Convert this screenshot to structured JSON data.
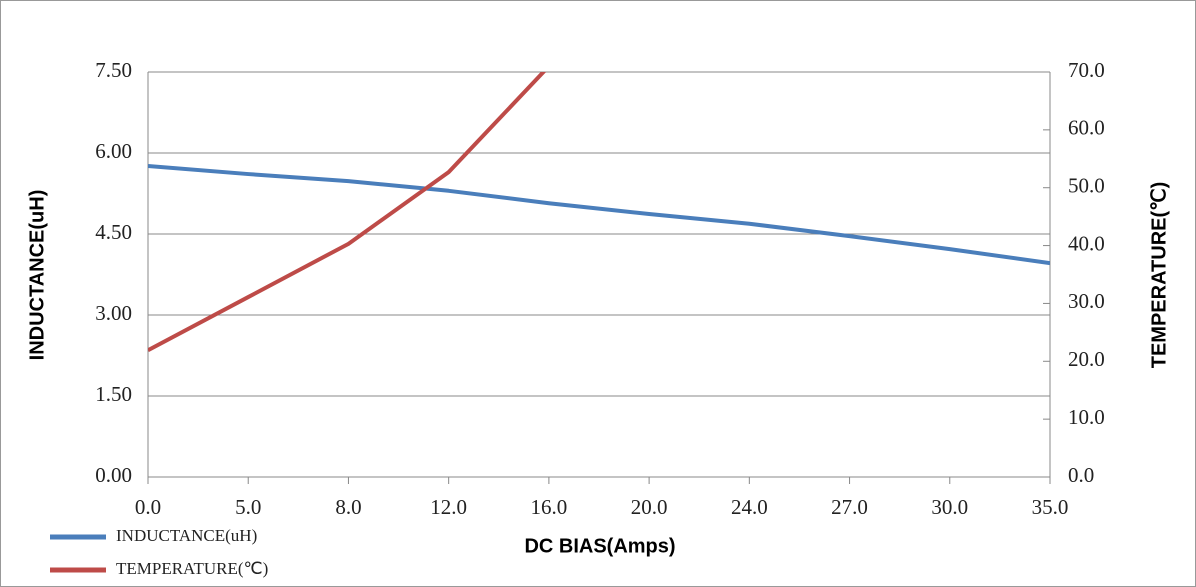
{
  "chart_data": {
    "type": "line",
    "xlabel": "DC BIAS(Amps)",
    "ylabel": "INDUCTANCE(uH)",
    "y2label": "TEMPERATURE(℃)",
    "categories": [
      "0.0",
      "5.0",
      "8.0",
      "12.0",
      "16.0",
      "20.0",
      "24.0",
      "27.0",
      "30.0",
      "35.0"
    ],
    "series": [
      {
        "name": "INDUCTANCE(uH)",
        "color": "#4a7ebb",
        "values": [
          5.76,
          5.61,
          5.48,
          5.3,
          5.07,
          4.87,
          4.69,
          4.46,
          4.22,
          3.96
        ]
      },
      {
        "name": "TEMPERATURE(℃)",
        "color": "#be4b48",
        "axis": "y2",
        "values": [
          21.9,
          31.1,
          40.3,
          52.7,
          71,
          null,
          null,
          null,
          null,
          null
        ]
      }
    ],
    "ylim": [
      0,
      7.5
    ],
    "yticks": [
      {
        "value": 0,
        "label": "0.00"
      },
      {
        "value": 1.5,
        "label": "1.50"
      },
      {
        "value": 3,
        "label": "3.00"
      },
      {
        "value": 4.5,
        "label": "4.50"
      },
      {
        "value": 6,
        "label": "6.00"
      },
      {
        "value": 7.5,
        "label": "7.50"
      }
    ],
    "y2lim": [
      0,
      70
    ],
    "y2ticks": [
      {
        "value": 0,
        "label": "0.0"
      },
      {
        "value": 10,
        "label": "10.0"
      },
      {
        "value": 20,
        "label": "20.0"
      },
      {
        "value": 30,
        "label": "30.0"
      },
      {
        "value": 40,
        "label": "40.0"
      },
      {
        "value": 50,
        "label": "50.0"
      },
      {
        "value": 60,
        "label": "60.0"
      },
      {
        "value": 70,
        "label": "70.0"
      }
    ],
    "grid": true,
    "legend": "bottom-left"
  }
}
